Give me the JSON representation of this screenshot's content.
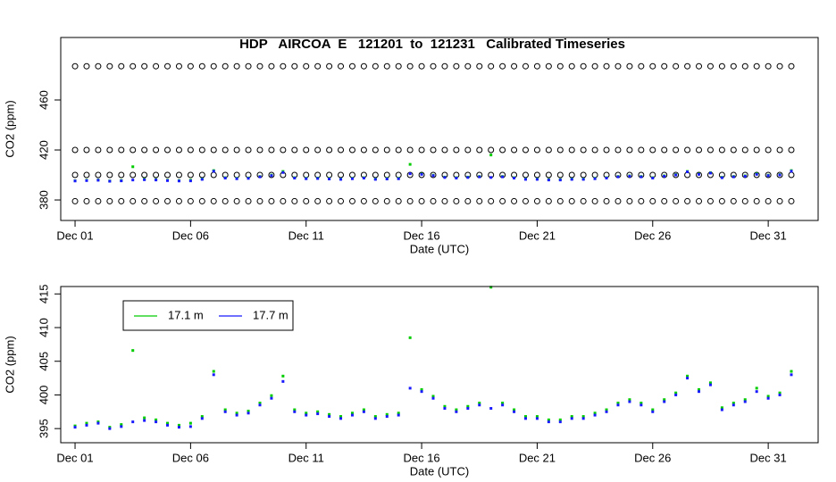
{
  "chart_data": [
    {
      "type": "scatter",
      "title": "HDP   AIRCOA  E   121201  to  121231   Calibrated Timeseries",
      "x_label": "Date (UTC)",
      "y_label": "CO2 (ppm)",
      "x": [
        1,
        1.5,
        2,
        2.5,
        3,
        3.5,
        4,
        4.5,
        5,
        5.5,
        6,
        6.5,
        7,
        7.5,
        8,
        8.5,
        9,
        9.5,
        10,
        10.5,
        11,
        11.5,
        12,
        12.5,
        13,
        13.5,
        14,
        14.5,
        15,
        15.5,
        16,
        16.5,
        17,
        17.5,
        18,
        18.5,
        19,
        19.5,
        20,
        20.5,
        21,
        21.5,
        22,
        22.5,
        23,
        23.5,
        24,
        24.5,
        25,
        25.5,
        26,
        26.5,
        27,
        27.5,
        28,
        28.5,
        29,
        29.5,
        30,
        30.5,
        31,
        31.5,
        32
      ],
      "reference_levels": [
        487,
        420,
        400,
        379
      ],
      "reference_color": "#000000",
      "xlim": [
        0.38,
        33.16
      ],
      "xticks": [
        {
          "value": 1,
          "label": "Dec 01"
        },
        {
          "value": 6,
          "label": "Dec 06"
        },
        {
          "value": 11,
          "label": "Dec 11"
        },
        {
          "value": 16,
          "label": "Dec 16"
        },
        {
          "value": 21,
          "label": "Dec 21"
        },
        {
          "value": 26,
          "label": "Dec 26"
        },
        {
          "value": 31,
          "label": "Dec 31"
        }
      ],
      "ylim": [
        363.6,
        510
      ],
      "yticks": [
        380,
        420,
        460
      ]
    },
    {
      "type": "scatter",
      "x_label": "Date (UTC)",
      "y_label": "CO2 (ppm)",
      "legend": "top-left",
      "x": [
        1,
        1.5,
        2,
        2.5,
        3,
        3.5,
        4,
        4.5,
        5,
        5.5,
        6,
        6.5,
        7,
        7.5,
        8,
        8.5,
        9,
        9.5,
        10,
        10.5,
        11,
        11.5,
        12,
        12.5,
        13,
        13.5,
        14,
        14.5,
        15,
        15.5,
        16,
        16.5,
        17,
        17.5,
        18,
        18.5,
        19,
        19.5,
        20,
        20.5,
        21,
        21.5,
        22,
        22.5,
        23,
        23.5,
        24,
        24.5,
        25,
        25.5,
        26,
        26.5,
        27,
        27.5,
        28,
        28.5,
        29,
        29.5,
        30,
        30.5,
        31,
        31.5,
        32
      ],
      "series": [
        {
          "name": "17.1 m",
          "color": "#00cc00",
          "values": [
            395.4,
            395.8,
            396.0,
            395.2,
            395.6,
            406.6,
            396.6,
            396.3,
            395.8,
            395.5,
            395.8,
            396.8,
            403.5,
            397.8,
            397.3,
            397.6,
            398.8,
            399.9,
            402.8,
            397.8,
            397.3,
            397.5,
            397.1,
            396.8,
            397.3,
            397.8,
            396.8,
            397.1,
            397.3,
            408.5,
            400.8,
            399.8,
            398.3,
            397.8,
            398.3,
            398.8,
            416.0,
            398.8,
            397.8,
            396.8,
            396.8,
            396.3,
            396.3,
            396.8,
            396.8,
            397.3,
            397.8,
            398.8,
            399.3,
            398.8,
            397.8,
            399.3,
            400.3,
            402.8,
            400.8,
            401.8,
            398.1,
            398.8,
            399.3,
            401.0,
            399.8,
            400.3,
            403.5
          ]
        },
        {
          "name": "17.7 m",
          "color": "#1a1aff",
          "values": [
            395.2,
            395.5,
            395.8,
            395.0,
            395.3,
            396.0,
            396.2,
            396.0,
            395.5,
            395.2,
            395.3,
            396.5,
            403.0,
            397.5,
            397.0,
            397.3,
            398.5,
            399.5,
            402.0,
            397.5,
            397.0,
            397.2,
            396.8,
            396.5,
            397.0,
            397.5,
            396.5,
            396.8,
            397.0,
            401.0,
            400.5,
            399.5,
            398.0,
            397.5,
            398.0,
            398.5,
            398.0,
            398.5,
            397.5,
            396.5,
            396.5,
            396.0,
            396.0,
            396.5,
            396.5,
            397.0,
            397.5,
            398.5,
            399.0,
            398.5,
            397.5,
            399.0,
            400.0,
            402.5,
            400.5,
            401.5,
            397.8,
            398.5,
            399.0,
            400.5,
            399.5,
            400.0,
            403.0
          ]
        }
      ],
      "xlim": [
        0.38,
        33.16
      ],
      "xticks": [
        {
          "value": 1,
          "label": "Dec 01"
        },
        {
          "value": 6,
          "label": "Dec 06"
        },
        {
          "value": 11,
          "label": "Dec 11"
        },
        {
          "value": 16,
          "label": "Dec 16"
        },
        {
          "value": 21,
          "label": "Dec 21"
        },
        {
          "value": 26,
          "label": "Dec 26"
        },
        {
          "value": 31,
          "label": "Dec 31"
        }
      ],
      "ylim": [
        392.9,
        416.1
      ],
      "yticks": [
        395,
        400,
        405,
        410,
        415
      ]
    }
  ]
}
